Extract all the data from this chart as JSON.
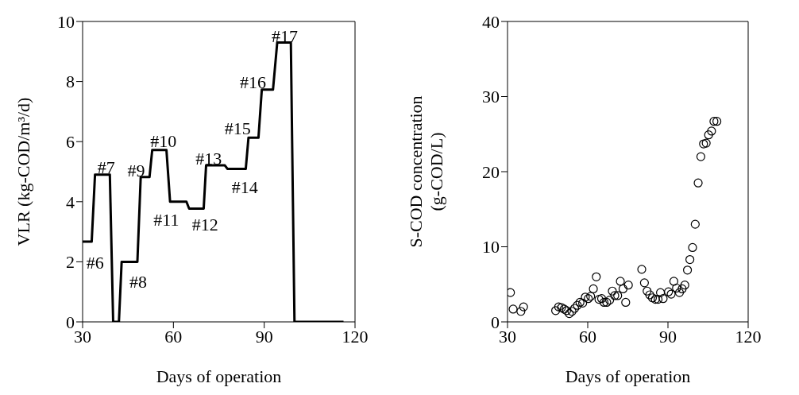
{
  "chart_data": [
    {
      "type": "line",
      "ylabel": "VLR (kg-COD/m³/d)",
      "xlabel": "Days of operation",
      "xlim": [
        30,
        120
      ],
      "xticks": [
        30,
        60,
        90,
        120
      ],
      "ylim": [
        0,
        10
      ],
      "yticks": [
        0,
        2,
        4,
        6,
        8,
        10
      ],
      "marker": "none",
      "line_style": "solid",
      "series": [
        {
          "color": "#000000",
          "x": [
            30,
            33.0,
            34.1,
            39.0,
            40.1,
            42.0,
            42.9,
            48.1,
            49.2,
            52.1,
            53.0,
            57.7,
            58.9,
            64.3,
            65.2,
            70.0,
            70.8,
            77.0,
            77.9,
            83.9,
            84.8,
            88.1,
            89.2,
            92.9,
            94.3,
            98.8,
            100.0,
            116.2
          ],
          "values": [
            2.67,
            2.67,
            4.9,
            4.9,
            0,
            0,
            2.0,
            2.0,
            4.82,
            4.82,
            5.72,
            5.72,
            4.0,
            4.0,
            3.77,
            3.77,
            5.21,
            5.21,
            5.09,
            5.09,
            6.13,
            6.13,
            7.73,
            7.73,
            9.3,
            9.3,
            0,
            0
          ]
        }
      ],
      "annotations": [
        {
          "text": "#6",
          "x": 31.5,
          "y": 2.67
        },
        {
          "text": "#7",
          "x": 36.5,
          "y": 4.9
        },
        {
          "text": "#8",
          "x": 45.5,
          "y": 2.0
        },
        {
          "text": "#9",
          "x": 50.6,
          "y": 4.82
        },
        {
          "text": "#10",
          "x": 55.4,
          "y": 5.72
        },
        {
          "text": "#11",
          "x": 61.6,
          "y": 4.0
        },
        {
          "text": "#12",
          "x": 67.6,
          "y": 3.77
        },
        {
          "text": "#13",
          "x": 74.0,
          "y": 5.21
        },
        {
          "text": "#14",
          "x": 81.0,
          "y": 5.09
        },
        {
          "text": "#15",
          "x": 86.5,
          "y": 6.13
        },
        {
          "text": "#16",
          "x": 91.0,
          "y": 7.73
        },
        {
          "text": "#17",
          "x": 96.5,
          "y": 9.3
        }
      ]
    },
    {
      "type": "scatter",
      "ylabel": "S-COD concentration\n(g-COD/L)",
      "xlabel": "Days of operation",
      "xlim": [
        30,
        120
      ],
      "xticks": [
        30,
        60,
        90,
        120
      ],
      "ylim": [
        0,
        40
      ],
      "yticks": [
        0,
        10,
        20,
        30,
        40
      ],
      "marker": "circle",
      "series": [
        {
          "color": "#000000",
          "x": [
            31.1,
            32.1,
            35.0,
            36.0,
            48.0,
            49.1,
            50.2,
            51.2,
            52.1,
            53.1,
            54.1,
            55.1,
            56.1,
            57.1,
            58.1,
            59.1,
            60.2,
            61.1,
            62.1,
            63.2,
            64.2,
            65.2,
            66.1,
            67.1,
            68.2,
            69.2,
            70.1,
            71.2,
            72.2,
            73.2,
            74.2,
            75.2,
            80.2,
            81.2,
            82.2,
            83.2,
            84.2,
            85.3,
            86.3,
            87.2,
            88.2,
            90.2,
            91.2,
            92.2,
            93.2,
            94.3,
            95.3,
            96.3,
            97.3,
            98.2,
            99.2,
            100.2,
            101.3,
            102.3,
            103.3,
            104.3,
            105.2,
            106.3,
            107.2,
            108.3
          ],
          "values": [
            3.9,
            1.7,
            1.4,
            2.0,
            1.5,
            2.0,
            1.9,
            1.7,
            1.5,
            1.1,
            1.4,
            1.8,
            2.2,
            2.6,
            2.5,
            3.3,
            3.1,
            3.4,
            4.4,
            6.0,
            3.0,
            3.1,
            2.6,
            2.6,
            2.9,
            4.1,
            3.5,
            3.5,
            5.4,
            4.4,
            2.6,
            4.9,
            7.0,
            5.2,
            4.1,
            3.6,
            3.2,
            3.0,
            3.0,
            3.9,
            3.1,
            4.0,
            3.7,
            5.4,
            4.5,
            3.9,
            4.4,
            4.9,
            6.9,
            8.3,
            9.9,
            13.0,
            18.5,
            22.0,
            23.7,
            23.8,
            24.9,
            25.4,
            26.7,
            26.7
          ]
        }
      ]
    }
  ]
}
